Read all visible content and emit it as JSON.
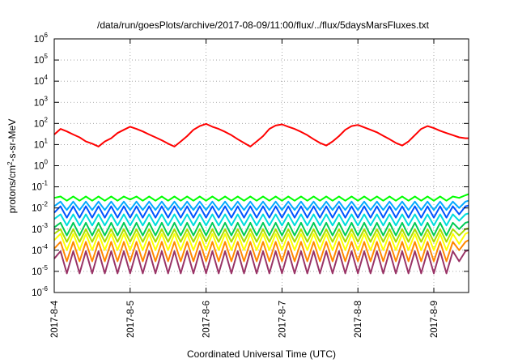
{
  "chart_data": {
    "type": "line",
    "title": "/data/run/goesPlots/archive/2017-08-09/11:00/flux/../flux/5daysMarsFluxes.txt",
    "xlabel": "Coordinated Universal Time (UTC)",
    "ylabel": {
      "prefix": "protons/cm",
      "sup": "2",
      "suffix": "-s-sr-MeV"
    },
    "yscale": "log",
    "ylim": [
      1e-06,
      1000000.0
    ],
    "xlim": [
      "2017-08-04T00:00",
      "2017-08-09T11:00"
    ],
    "grid": true,
    "x_ticks": [
      "2017-8-4",
      "2017-8-5",
      "2017-8-6",
      "2017-8-7",
      "2017-8-8",
      "2017-8-9"
    ],
    "y_ticks": [
      {
        "base": "10",
        "exp": "6"
      },
      {
        "base": "10",
        "exp": "5"
      },
      {
        "base": "10",
        "exp": "4"
      },
      {
        "base": "10",
        "exp": "3"
      },
      {
        "base": "10",
        "exp": "2"
      },
      {
        "base": "10",
        "exp": "1"
      },
      {
        "base": "10",
        "exp": "0"
      },
      {
        "base": "10",
        "exp": "-1"
      },
      {
        "base": "10",
        "exp": "-2"
      },
      {
        "base": "10",
        "exp": "-3"
      },
      {
        "base": "10",
        "exp": "-4"
      },
      {
        "base": "10",
        "exp": "-5"
      },
      {
        "base": "10",
        "exp": "-6"
      }
    ],
    "x": [
      "2017-08-04T00:00",
      "2017-08-04T02:00",
      "2017-08-04T04:00",
      "2017-08-04T06:00",
      "2017-08-04T08:00",
      "2017-08-04T10:00",
      "2017-08-04T12:00",
      "2017-08-04T14:00",
      "2017-08-04T16:00",
      "2017-08-04T18:00",
      "2017-08-04T20:00",
      "2017-08-04T22:00",
      "2017-08-05T00:00",
      "2017-08-05T02:00",
      "2017-08-05T04:00",
      "2017-08-05T06:00",
      "2017-08-05T08:00",
      "2017-08-05T10:00",
      "2017-08-05T12:00",
      "2017-08-05T14:00",
      "2017-08-05T16:00",
      "2017-08-05T18:00",
      "2017-08-05T20:00",
      "2017-08-05T22:00",
      "2017-08-06T00:00",
      "2017-08-06T02:00",
      "2017-08-06T04:00",
      "2017-08-06T06:00",
      "2017-08-06T08:00",
      "2017-08-06T10:00",
      "2017-08-06T12:00",
      "2017-08-06T14:00",
      "2017-08-06T16:00",
      "2017-08-06T18:00",
      "2017-08-06T20:00",
      "2017-08-06T22:00",
      "2017-08-07T00:00",
      "2017-08-07T02:00",
      "2017-08-07T04:00",
      "2017-08-07T06:00",
      "2017-08-07T08:00",
      "2017-08-07T10:00",
      "2017-08-07T12:00",
      "2017-08-07T14:00",
      "2017-08-07T16:00",
      "2017-08-07T18:00",
      "2017-08-07T20:00",
      "2017-08-07T22:00",
      "2017-08-08T00:00",
      "2017-08-08T02:00",
      "2017-08-08T04:00",
      "2017-08-08T06:00",
      "2017-08-08T08:00",
      "2017-08-08T10:00",
      "2017-08-08T12:00",
      "2017-08-08T14:00",
      "2017-08-08T16:00",
      "2017-08-08T18:00",
      "2017-08-08T20:00",
      "2017-08-08T22:00",
      "2017-08-09T00:00",
      "2017-08-09T02:00",
      "2017-08-09T04:00",
      "2017-08-09T06:00",
      "2017-08-09T08:00",
      "2017-08-09T10:00",
      "2017-08-09T11:00"
    ],
    "series": [
      {
        "color": "#ff0000",
        "values": [
          30,
          55,
          42,
          30,
          22,
          14,
          11,
          8,
          14,
          20,
          35,
          50,
          70,
          55,
          42,
          30,
          22,
          16,
          11,
          8,
          14,
          25,
          50,
          75,
          95,
          70,
          55,
          40,
          28,
          18,
          12,
          8,
          14,
          25,
          55,
          80,
          90,
          70,
          55,
          40,
          28,
          18,
          12,
          9,
          14,
          25,
          50,
          75,
          85,
          65,
          50,
          38,
          26,
          18,
          12,
          9,
          14,
          28,
          55,
          75,
          60,
          45,
          35,
          28,
          22,
          20,
          20
        ]
      },
      {
        "color": "#00ff00",
        "values": [
          0.03,
          0.035,
          0.022,
          0.035,
          0.022,
          0.035,
          0.022,
          0.035,
          0.022,
          0.035,
          0.022,
          0.035,
          0.025,
          0.035,
          0.022,
          0.035,
          0.022,
          0.035,
          0.022,
          0.035,
          0.022,
          0.035,
          0.022,
          0.035,
          0.022,
          0.035,
          0.022,
          0.035,
          0.022,
          0.035,
          0.022,
          0.035,
          0.022,
          0.035,
          0.022,
          0.035,
          0.022,
          0.035,
          0.022,
          0.035,
          0.022,
          0.035,
          0.022,
          0.035,
          0.022,
          0.035,
          0.022,
          0.035,
          0.022,
          0.035,
          0.022,
          0.035,
          0.022,
          0.035,
          0.022,
          0.035,
          0.022,
          0.035,
          0.022,
          0.035,
          0.022,
          0.035,
          0.022,
          0.035,
          0.03,
          0.04,
          0.045
        ]
      },
      {
        "color": "#00aaff",
        "values": [
          0.012,
          0.02,
          0.008,
          0.02,
          0.008,
          0.02,
          0.008,
          0.02,
          0.008,
          0.02,
          0.008,
          0.02,
          0.008,
          0.02,
          0.008,
          0.02,
          0.008,
          0.02,
          0.008,
          0.02,
          0.008,
          0.02,
          0.008,
          0.02,
          0.008,
          0.02,
          0.008,
          0.02,
          0.008,
          0.02,
          0.008,
          0.02,
          0.008,
          0.02,
          0.008,
          0.02,
          0.008,
          0.02,
          0.008,
          0.02,
          0.008,
          0.02,
          0.008,
          0.02,
          0.008,
          0.02,
          0.008,
          0.02,
          0.008,
          0.02,
          0.008,
          0.02,
          0.008,
          0.02,
          0.008,
          0.02,
          0.008,
          0.02,
          0.008,
          0.02,
          0.008,
          0.02,
          0.008,
          0.02,
          0.01,
          0.02,
          0.022
        ]
      },
      {
        "color": "#0055ff",
        "values": [
          0.006,
          0.012,
          0.0035,
          0.012,
          0.0035,
          0.012,
          0.0035,
          0.012,
          0.0035,
          0.012,
          0.0035,
          0.012,
          0.0035,
          0.012,
          0.0035,
          0.012,
          0.0035,
          0.012,
          0.0035,
          0.012,
          0.0035,
          0.012,
          0.0035,
          0.012,
          0.0035,
          0.012,
          0.0035,
          0.012,
          0.0035,
          0.012,
          0.0035,
          0.012,
          0.0035,
          0.012,
          0.0035,
          0.012,
          0.0035,
          0.012,
          0.0035,
          0.012,
          0.0035,
          0.012,
          0.0035,
          0.012,
          0.0035,
          0.012,
          0.0035,
          0.012,
          0.0035,
          0.012,
          0.0035,
          0.012,
          0.0035,
          0.012,
          0.0035,
          0.012,
          0.0035,
          0.012,
          0.0035,
          0.012,
          0.0035,
          0.012,
          0.0035,
          0.012,
          0.005,
          0.012,
          0.013
        ]
      },
      {
        "color": "#00dddd",
        "values": [
          0.003,
          0.005,
          0.0015,
          0.005,
          0.0015,
          0.005,
          0.0015,
          0.005,
          0.0015,
          0.005,
          0.0015,
          0.005,
          0.0015,
          0.005,
          0.0015,
          0.005,
          0.0015,
          0.005,
          0.0015,
          0.005,
          0.0015,
          0.005,
          0.0015,
          0.005,
          0.0015,
          0.005,
          0.0015,
          0.005,
          0.0015,
          0.005,
          0.0015,
          0.005,
          0.0015,
          0.005,
          0.0015,
          0.005,
          0.0015,
          0.005,
          0.0015,
          0.005,
          0.0015,
          0.005,
          0.0015,
          0.005,
          0.0015,
          0.005,
          0.0015,
          0.005,
          0.0015,
          0.005,
          0.0015,
          0.005,
          0.0015,
          0.005,
          0.0015,
          0.005,
          0.0015,
          0.005,
          0.0015,
          0.005,
          0.0015,
          0.005,
          0.0015,
          0.005,
          0.0025,
          0.005,
          0.0055
        ]
      },
      {
        "color": "#00cc55",
        "values": [
          0.0012,
          0.002,
          0.0005,
          0.002,
          0.0005,
          0.002,
          0.0005,
          0.002,
          0.0005,
          0.002,
          0.0005,
          0.002,
          0.0005,
          0.002,
          0.0005,
          0.002,
          0.0005,
          0.002,
          0.0005,
          0.002,
          0.0005,
          0.002,
          0.0005,
          0.002,
          0.0005,
          0.002,
          0.0005,
          0.002,
          0.0005,
          0.002,
          0.0005,
          0.002,
          0.0005,
          0.002,
          0.0005,
          0.002,
          0.0005,
          0.002,
          0.0005,
          0.002,
          0.0005,
          0.002,
          0.0005,
          0.002,
          0.0005,
          0.002,
          0.0005,
          0.002,
          0.0005,
          0.002,
          0.0005,
          0.002,
          0.0005,
          0.002,
          0.0005,
          0.002,
          0.0005,
          0.002,
          0.0005,
          0.002,
          0.0005,
          0.002,
          0.0005,
          0.002,
          0.001,
          0.002,
          0.0022
        ]
      },
      {
        "color": "#aadd00",
        "values": [
          0.0006,
          0.001,
          0.00025,
          0.001,
          0.00025,
          0.001,
          0.00025,
          0.001,
          0.00025,
          0.001,
          0.00025,
          0.001,
          0.00025,
          0.001,
          0.00025,
          0.001,
          0.00025,
          0.001,
          0.00025,
          0.001,
          0.00025,
          0.001,
          0.00025,
          0.001,
          0.00025,
          0.001,
          0.00025,
          0.001,
          0.00025,
          0.001,
          0.00025,
          0.001,
          0.00025,
          0.001,
          0.00025,
          0.001,
          0.00025,
          0.001,
          0.00025,
          0.001,
          0.00025,
          0.001,
          0.00025,
          0.001,
          0.00025,
          0.001,
          0.00025,
          0.001,
          0.00025,
          0.001,
          0.00025,
          0.001,
          0.00025,
          0.001,
          0.00025,
          0.001,
          0.00025,
          0.001,
          0.00025,
          0.001,
          0.00025,
          0.001,
          0.00025,
          0.001,
          0.0005,
          0.001,
          0.0011
        ]
      },
      {
        "color": "#ffff00",
        "values": [
          0.0003,
          0.0006,
          0.0001,
          0.0006,
          0.0001,
          0.0006,
          0.0001,
          0.0006,
          0.0001,
          0.0006,
          0.0001,
          0.0006,
          0.0001,
          0.0006,
          0.0001,
          0.0006,
          0.0001,
          0.0006,
          0.0001,
          0.0006,
          0.0001,
          0.0006,
          0.0001,
          0.0006,
          0.0001,
          0.0006,
          0.0001,
          0.0006,
          0.0001,
          0.0006,
          0.0001,
          0.0006,
          0.0001,
          0.0006,
          0.0001,
          0.0006,
          0.0001,
          0.0006,
          0.0001,
          0.0006,
          0.0001,
          0.0006,
          0.0001,
          0.0006,
          0.0001,
          0.0006,
          0.0001,
          0.0006,
          0.0001,
          0.0006,
          0.0001,
          0.0006,
          0.0001,
          0.0006,
          0.0001,
          0.0006,
          0.0001,
          0.0006,
          0.0001,
          0.0006,
          0.0001,
          0.0006,
          0.0001,
          0.0006,
          0.0002,
          0.0006,
          0.0007
        ]
      },
      {
        "color": "#ff8800",
        "values": [
          0.00012,
          0.00025,
          3e-05,
          0.00025,
          3e-05,
          0.00025,
          3e-05,
          0.00025,
          3e-05,
          0.00025,
          3e-05,
          0.00025,
          3e-05,
          0.00025,
          3e-05,
          0.00025,
          3e-05,
          0.00025,
          3e-05,
          0.00025,
          3e-05,
          0.00025,
          3e-05,
          0.00025,
          3e-05,
          0.00025,
          3e-05,
          0.00025,
          3e-05,
          0.00025,
          3e-05,
          0.00025,
          3e-05,
          0.00025,
          3e-05,
          0.00025,
          3e-05,
          0.00025,
          3e-05,
          0.00025,
          3e-05,
          0.00025,
          3e-05,
          0.00025,
          3e-05,
          0.00025,
          3e-05,
          0.00025,
          3e-05,
          0.00025,
          3e-05,
          0.00025,
          3e-05,
          0.00025,
          3e-05,
          0.00025,
          3e-05,
          0.00025,
          3e-05,
          0.00025,
          3e-05,
          0.00025,
          3e-05,
          0.00025,
          0.0001,
          0.00025,
          0.0003
        ]
      },
      {
        "color": "#993366",
        "values": [
          4e-05,
          9e-05,
          8e-06,
          9e-05,
          8e-06,
          9e-05,
          8e-06,
          9e-05,
          8e-06,
          9e-05,
          8e-06,
          9e-05,
          8e-06,
          9e-05,
          8e-06,
          9e-05,
          8e-06,
          9e-05,
          8e-06,
          9e-05,
          8e-06,
          9e-05,
          8e-06,
          9e-05,
          8e-06,
          9e-05,
          8e-06,
          9e-05,
          8e-06,
          9e-05,
          8e-06,
          9e-05,
          8e-06,
          9e-05,
          8e-06,
          9e-05,
          8e-06,
          9e-05,
          8e-06,
          9e-05,
          8e-06,
          9e-05,
          8e-06,
          9e-05,
          8e-06,
          9e-05,
          8e-06,
          9e-05,
          8e-06,
          9e-05,
          8e-06,
          9e-05,
          8e-06,
          9e-05,
          8e-06,
          9e-05,
          8e-06,
          9e-05,
          8e-06,
          9e-05,
          8e-06,
          9e-05,
          8e-06,
          9e-05,
          3e-05,
          9e-05,
          0.0001
        ]
      }
    ]
  }
}
